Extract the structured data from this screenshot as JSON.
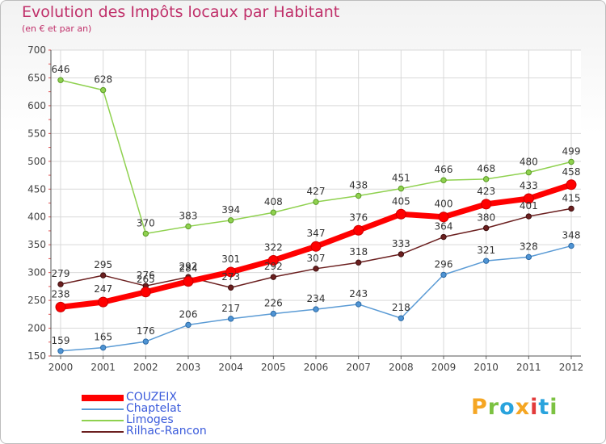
{
  "header": {
    "title": "Evolution des Impôts locaux par Habitant",
    "subtitle": "(en € et par an)"
  },
  "logo": {
    "text": "Proxiti",
    "letters": [
      {
        "ch": "P",
        "color": "#f5a623"
      },
      {
        "ch": "r",
        "color": "#7cc242"
      },
      {
        "ch": "o",
        "color": "#29a3dd"
      },
      {
        "ch": "x",
        "color": "#f5a623"
      },
      {
        "ch": "i",
        "color": "#e23b3b"
      },
      {
        "ch": "t",
        "color": "#29a3dd"
      },
      {
        "ch": "i",
        "color": "#7cc242"
      }
    ]
  },
  "chart_data": {
    "type": "line",
    "title": "Evolution des Impôts locaux par Habitant",
    "subtitle": "(en € et par an)",
    "xlabel": "",
    "ylabel": "",
    "x": [
      "2000",
      "2001",
      "2002",
      "2003",
      "2004",
      "2005",
      "2006",
      "2007",
      "2008",
      "2009",
      "2010",
      "2011",
      "2012"
    ],
    "ylim": [
      150,
      700
    ],
    "yticks": [
      150,
      200,
      250,
      300,
      350,
      400,
      450,
      500,
      550,
      600,
      650,
      700
    ],
    "grid": true,
    "legend_position": "bottom-left",
    "series": [
      {
        "name": "COUZEIX",
        "color": "#ff0000",
        "values": [
          238,
          247,
          265,
          284,
          301,
          322,
          347,
          376,
          405,
          400,
          423,
          433,
          458
        ]
      },
      {
        "name": "Chaptelat",
        "color": "#5b9bd5",
        "values": [
          159,
          165,
          176,
          206,
          217,
          226,
          234,
          243,
          218,
          296,
          321,
          328,
          348
        ]
      },
      {
        "name": "Limoges",
        "color": "#8fd14f",
        "values": [
          646,
          628,
          370,
          383,
          394,
          408,
          427,
          438,
          451,
          466,
          468,
          480,
          499
        ]
      },
      {
        "name": "Rilhac-Rancon",
        "color": "#6b1f1f",
        "values": [
          279,
          295,
          276,
          292,
          273,
          292,
          307,
          318,
          333,
          364,
          380,
          401,
          415
        ]
      }
    ]
  }
}
